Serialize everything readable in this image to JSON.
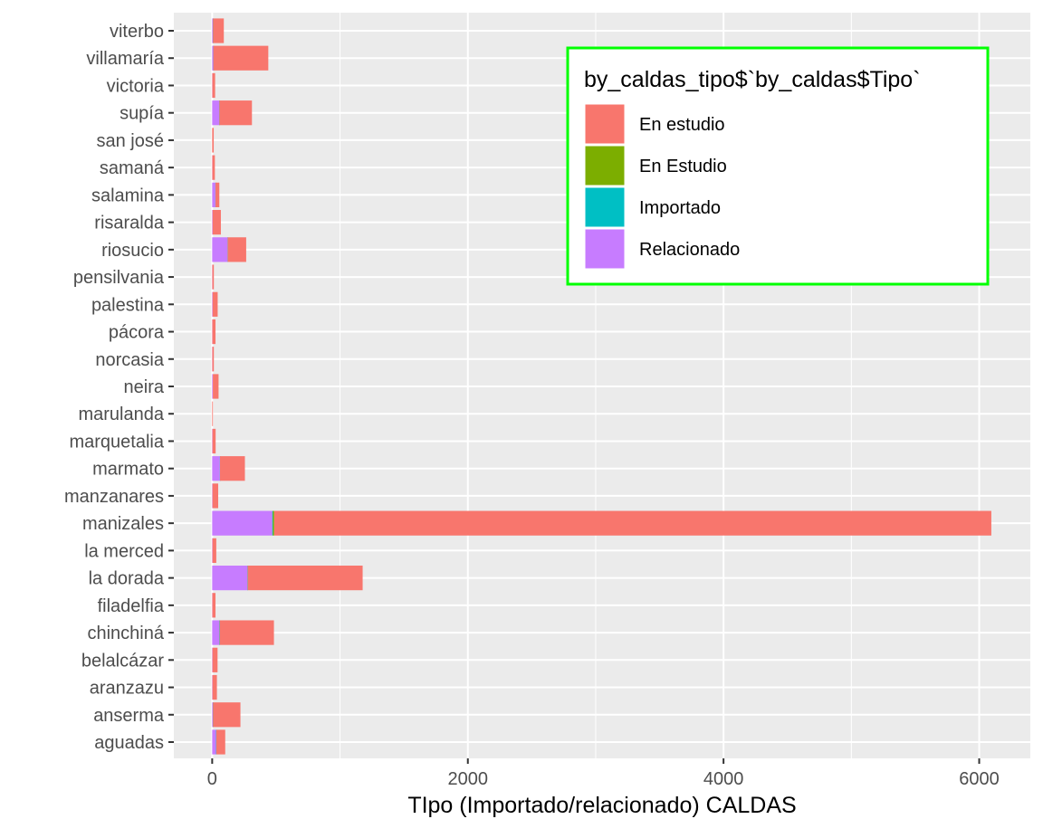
{
  "chart_data": {
    "type": "bar",
    "orientation": "horizontal",
    "stacked": true,
    "title": "",
    "xlabel": "TIpo (Importado/relacionado) CALDAS",
    "ylabel": "",
    "xlim": [
      -300,
      6400
    ],
    "x_ticks": [
      0,
      2000,
      4000,
      6000
    ],
    "x_tick_labels": [
      "0",
      "2000",
      "4000",
      "6000"
    ],
    "grid": true,
    "legend_position": "top-right",
    "legend_title": "by_caldas_tipo$`by_caldas$Tipo`",
    "categories": [
      "aguadas",
      "anserma",
      "aranzazu",
      "belalcázar",
      "chinchiná",
      "filadelfia",
      "la dorada",
      "la merced",
      "manizales",
      "manzanares",
      "marmato",
      "marquetalia",
      "marulanda",
      "neira",
      "norcasia",
      "pácora",
      "palestina",
      "pensilvania",
      "riosucio",
      "risaralda",
      "salamina",
      "samaná",
      "san josé",
      "supía",
      "victoria",
      "villamaría",
      "viterbo"
    ],
    "series": [
      {
        "name": "Relacionado",
        "color": "#C77CFF",
        "values": [
          30,
          5,
          2,
          2,
          55,
          1,
          275,
          2,
          470,
          2,
          60,
          2,
          0,
          5,
          1,
          1,
          3,
          1,
          120,
          3,
          25,
          1,
          0,
          55,
          1,
          8,
          5
        ]
      },
      {
        "name": "Importado",
        "color": "#00BFC4",
        "values": [
          2,
          1,
          0,
          0,
          3,
          0,
          2,
          0,
          5,
          0,
          1,
          0,
          0,
          0,
          0,
          0,
          0,
          0,
          1,
          0,
          1,
          0,
          0,
          1,
          0,
          1,
          1
        ]
      },
      {
        "name": "En Estudio",
        "color": "#7CAE00",
        "values": [
          0,
          0,
          0,
          0,
          0,
          0,
          0,
          0,
          10,
          0,
          0,
          0,
          0,
          0,
          0,
          0,
          0,
          0,
          0,
          0,
          0,
          0,
          0,
          0,
          0,
          0,
          0
        ]
      },
      {
        "name": "En estudio",
        "color": "#F8766D",
        "values": [
          70,
          215,
          35,
          40,
          425,
          25,
          900,
          30,
          5610,
          45,
          195,
          25,
          5,
          45,
          12,
          25,
          40,
          12,
          145,
          65,
          30,
          20,
          12,
          255,
          22,
          430,
          85
        ]
      }
    ],
    "legend_order": [
      "En estudio",
      "En Estudio",
      "Importado",
      "Relacionado"
    ]
  },
  "colors": {
    "panel_background": "#EBEBEB",
    "grid_line": "#FFFFFF",
    "legend_border": "#00FF00"
  }
}
